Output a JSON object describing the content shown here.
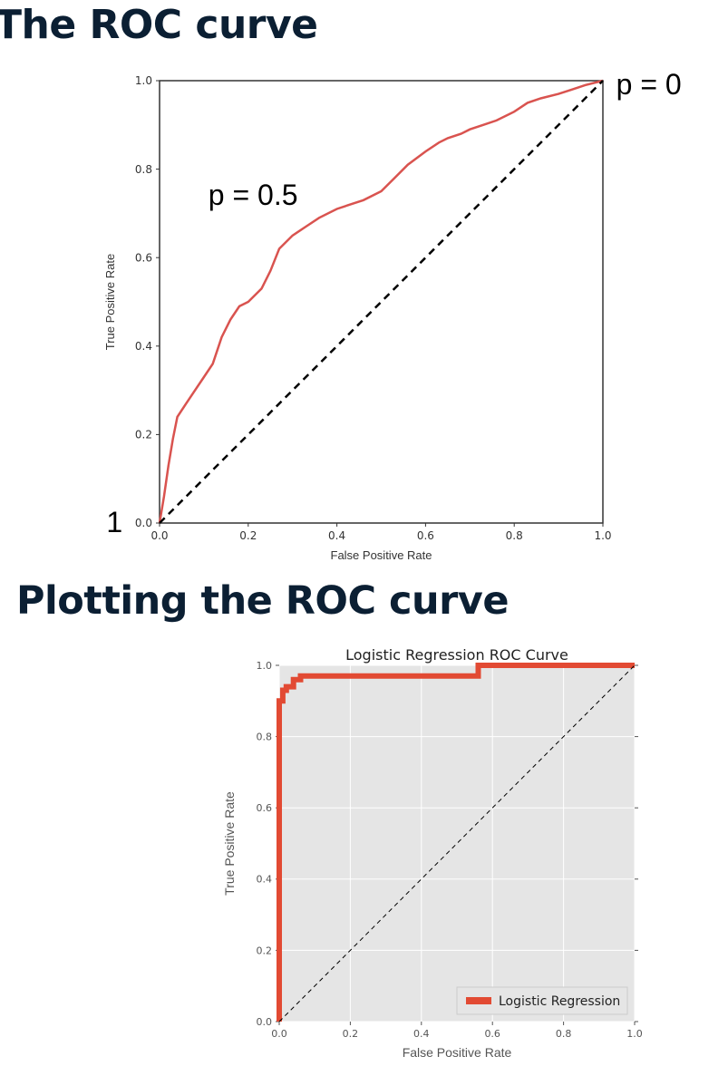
{
  "slides": [
    {
      "heading": "The ROC curve"
    },
    {
      "heading": "Plotting the ROC curve"
    }
  ],
  "chart_data": [
    {
      "type": "line",
      "title": "",
      "xlabel": "False Positive Rate",
      "ylabel": "True Positive Rate",
      "xlim": [
        0,
        1
      ],
      "ylim": [
        0,
        1
      ],
      "xticks": [
        "0.0",
        "0.2",
        "0.4",
        "0.6",
        "0.8",
        "1.0"
      ],
      "yticks": [
        "0.0",
        "0.2",
        "0.4",
        "0.6",
        "0.8",
        "1.0"
      ],
      "grid": false,
      "series": [
        {
          "color": "#d9534f",
          "x": [
            0,
            0.01,
            0.02,
            0.03,
            0.04,
            0.06,
            0.08,
            0.1,
            0.12,
            0.14,
            0.16,
            0.18,
            0.2,
            0.23,
            0.25,
            0.27,
            0.3,
            0.33,
            0.36,
            0.4,
            0.43,
            0.46,
            0.5,
            0.53,
            0.56,
            0.6,
            0.63,
            0.65,
            0.68,
            0.7,
            0.73,
            0.76,
            0.8,
            0.83,
            0.86,
            0.9,
            0.93,
            0.96,
            1.0
          ],
          "y": [
            0,
            0.06,
            0.13,
            0.19,
            0.24,
            0.27,
            0.3,
            0.33,
            0.36,
            0.42,
            0.46,
            0.49,
            0.5,
            0.53,
            0.57,
            0.62,
            0.65,
            0.67,
            0.69,
            0.71,
            0.72,
            0.73,
            0.75,
            0.78,
            0.81,
            0.84,
            0.86,
            0.87,
            0.88,
            0.89,
            0.9,
            0.91,
            0.93,
            0.95,
            0.96,
            0.97,
            0.98,
            0.99,
            1.0
          ]
        },
        {
          "color": "#000000",
          "dashed": true,
          "x": [
            0,
            1
          ],
          "y": [
            0,
            1
          ]
        }
      ],
      "annotations": [
        {
          "text": "p = 0.5",
          "x": 0.11,
          "y": 0.74
        },
        {
          "text": "p = 0",
          "x": 1.03,
          "y": 0.99
        },
        {
          "text": "1",
          "x": -0.12,
          "y": 0.0
        }
      ]
    },
    {
      "type": "line",
      "title": "Logistic Regression ROC Curve",
      "xlabel": "False Positive Rate",
      "ylabel": "True Positive Rate",
      "xlim": [
        0,
        1
      ],
      "ylim": [
        0,
        1
      ],
      "xticks": [
        "0.0",
        "0.2",
        "0.4",
        "0.6",
        "0.8",
        "1.0"
      ],
      "yticks": [
        "0.0",
        "0.2",
        "0.4",
        "0.6",
        "0.8",
        "1.0"
      ],
      "grid": true,
      "background": "#e5e5e5",
      "legend": {
        "position": "bottom-right",
        "entries": [
          "Logistic Regression"
        ]
      },
      "series": [
        {
          "name": "Logistic Regression",
          "color": "#e24a33",
          "x": [
            0,
            0,
            0.01,
            0.01,
            0.02,
            0.02,
            0.04,
            0.04,
            0.06,
            0.06,
            0.56,
            0.56,
            1.0
          ],
          "y": [
            0,
            0.9,
            0.9,
            0.93,
            0.93,
            0.94,
            0.94,
            0.96,
            0.96,
            0.97,
            0.97,
            1.0,
            1.0
          ]
        },
        {
          "color": "#000000",
          "dashed": true,
          "x": [
            0,
            1
          ],
          "y": [
            0,
            1
          ]
        }
      ]
    }
  ]
}
